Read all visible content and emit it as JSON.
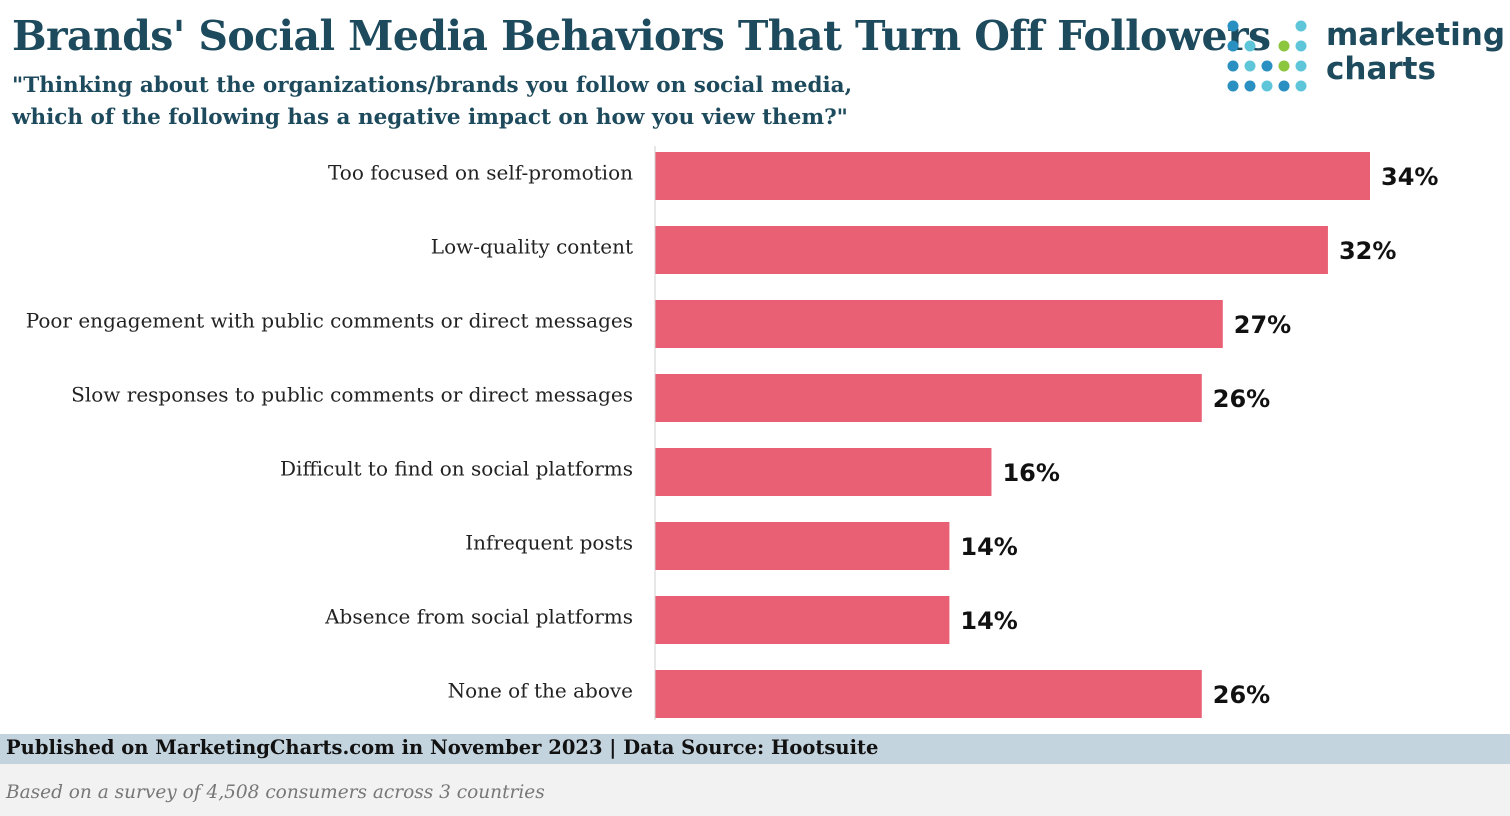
{
  "header": {
    "title": "Brands' Social Media Behaviors That Turn Off Followers",
    "subtitle_line1": "\"Thinking about the organizations/brands you follow on social media,",
    "subtitle_line2": "which of the following has a negative impact on how you view them?\""
  },
  "logo": {
    "line1": "marketing",
    "line2": "charts",
    "dot_colors": [
      "#2a8fc1",
      "#5fc6d9",
      "#8cc63f"
    ]
  },
  "chart_data": {
    "type": "bar",
    "orientation": "horizontal",
    "categories": [
      "Too focused on self-promotion",
      "Low-quality content",
      "Poor engagement with public comments or direct messages",
      "Slow responses to public comments or direct messages",
      "Difficult to find on social platforms",
      "Infrequent posts",
      "Absence from social platforms",
      "None of the above"
    ],
    "values": [
      34,
      32,
      27,
      26,
      16,
      14,
      14,
      26
    ],
    "value_labels": [
      "34%",
      "32%",
      "27%",
      "26%",
      "16%",
      "14%",
      "14%",
      "26%"
    ],
    "unit": "%",
    "xlim": [
      0,
      34
    ],
    "bar_color": "#e95f74",
    "grid": false,
    "legend": "none"
  },
  "footer": {
    "published": "Published on MarketingCharts.com in November 2023 | Data Source: Hootsuite",
    "note": "Based on a survey of 4,508 consumers across 3 countries"
  }
}
